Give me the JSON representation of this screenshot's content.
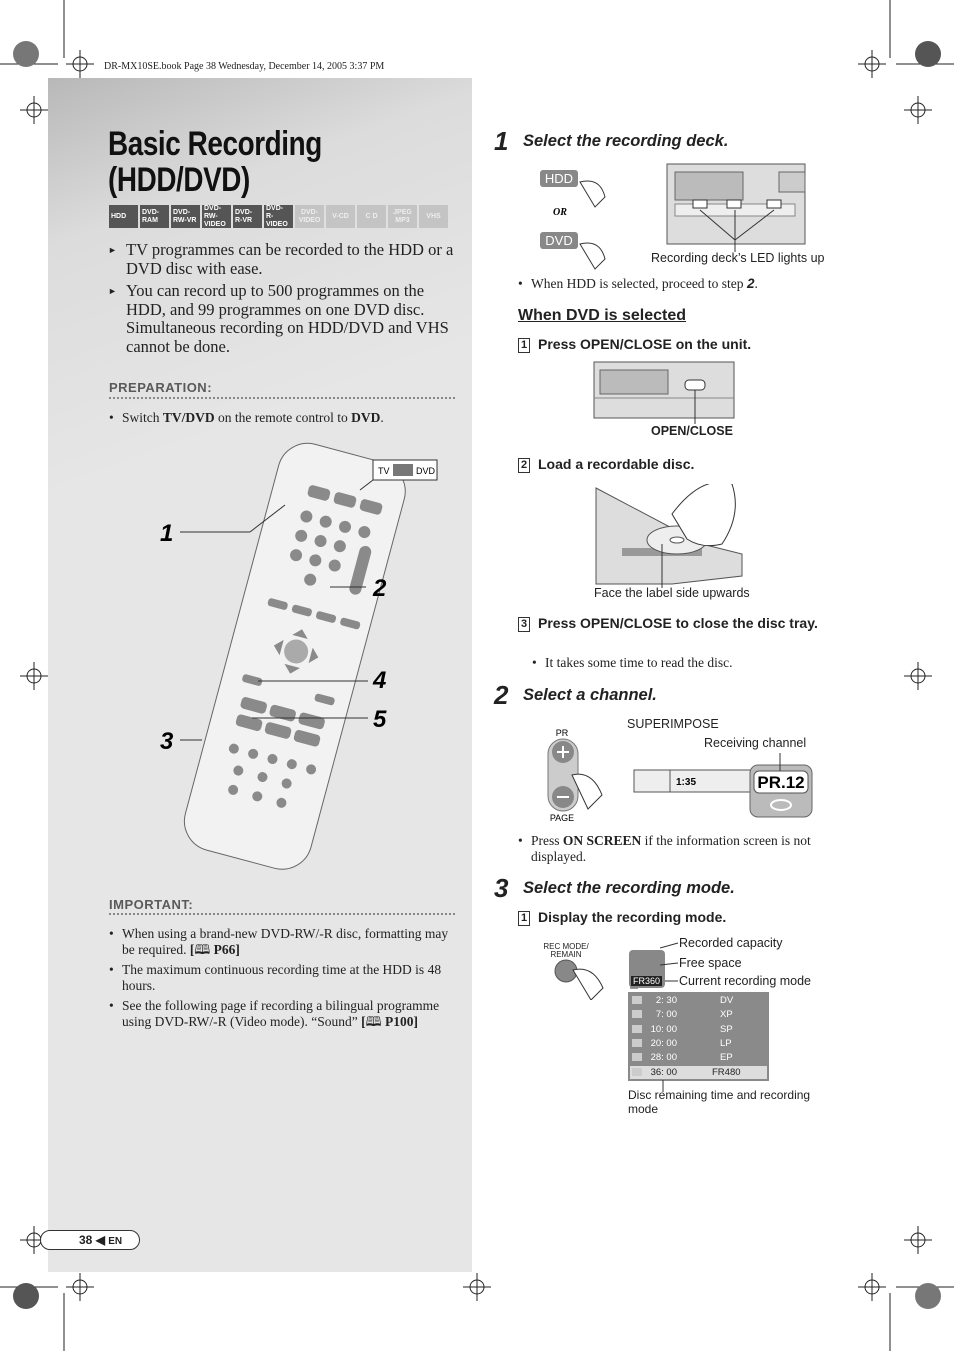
{
  "header": {
    "file_info": "DR-MX10SE.book  Page 38  Wednesday, December 14, 2005  3:37 PM"
  },
  "title_lines": [
    "Basic Recording",
    "(HDD/DVD)"
  ],
  "disc_badges": [
    {
      "lines": [
        "HDD"
      ],
      "active": true
    },
    {
      "lines": [
        "DVD-",
        "RAM"
      ],
      "active": true
    },
    {
      "lines": [
        "DVD-",
        "RW-VR"
      ],
      "active": true
    },
    {
      "lines": [
        "DVD-",
        "RW-VIDEO"
      ],
      "active": true
    },
    {
      "lines": [
        "DVD-",
        "R-VR"
      ],
      "active": true
    },
    {
      "lines": [
        "DVD-",
        "R-VIDEO"
      ],
      "active": true
    },
    {
      "lines": [
        "DVD-",
        "VIDEO"
      ],
      "active": false
    },
    {
      "lines": [
        "V-CD"
      ],
      "active": false
    },
    {
      "lines": [
        "C D"
      ],
      "active": false
    },
    {
      "lines": [
        "JPEG",
        "MP3"
      ],
      "active": false
    },
    {
      "lines": [
        "VHS"
      ],
      "active": false
    }
  ],
  "intro": [
    "TV programmes can be recorded to the HDD or a DVD disc with ease.",
    "You can record up to 500 programmes on the HDD, and 99 programmes on one DVD disc. Simultaneous recording on HDD/DVD and VHS cannot be done."
  ],
  "preparation": {
    "heading": "PREPARATION:",
    "item": [
      "Switch ",
      "TV/DVD",
      " on the remote control to ",
      "DVD",
      "."
    ]
  },
  "remote": {
    "switch_labels": [
      "TV",
      "DVD"
    ],
    "callouts": [
      "1",
      "2",
      "4",
      "5",
      "3"
    ]
  },
  "important": {
    "heading": "IMPORTANT:",
    "items": [
      {
        "text": "When using a brand-new DVD-RW/-R disc, formatting may be required. ",
        "ref": [
          "[",
          "P66]"
        ]
      },
      {
        "text": "The maximum continuous recording time at the HDD is 48 hours."
      },
      {
        "text": "See the following page if recording a bilingual programme using DVD-RW/-R (Video mode). “Sound” ",
        "ref": [
          "[",
          "P100]"
        ]
      }
    ]
  },
  "footer": {
    "page": "38",
    "lang": "EN"
  },
  "step1": {
    "number": "1",
    "title": "Select the recording deck.",
    "buttons": [
      "HDD",
      "DVD"
    ],
    "or": "OR",
    "led_caption": "Recording deck’s LED lights up",
    "note": [
      "When HDD is selected, proceed to step ",
      "2",
      "."
    ],
    "dvd_heading": "When DVD is selected",
    "substeps": [
      {
        "num": "1",
        "text": "Press OPEN/CLOSE on the unit.",
        "caption": "OPEN/CLOSE"
      },
      {
        "num": "2",
        "text": "Load a recordable disc.",
        "caption": "Face the label side upwards"
      },
      {
        "num": "3",
        "text": "Press OPEN/CLOSE to close the disc tray.",
        "note": "It takes some time to read the disc."
      }
    ]
  },
  "step2": {
    "number": "2",
    "title": "Select a channel.",
    "superimpose": "SUPERIMPOSE",
    "receiving": "Receiving channel",
    "pr_label": "PR",
    "page_label": "PAGE",
    "time": "1:35",
    "channel": "PR.12",
    "note": [
      "Press ",
      "ON SCREEN",
      " if the information screen is not displayed."
    ]
  },
  "step3": {
    "number": "3",
    "title": "Select the recording mode.",
    "substep": {
      "num": "1",
      "text": "Display the recording mode."
    },
    "button_label": [
      "REC MODE/",
      "REMAIN"
    ],
    "labels": [
      "Recorded capacity",
      "Free space",
      "Current recording mode"
    ],
    "indicator": "FR360",
    "table": [
      [
        "2: 30",
        "DV"
      ],
      [
        "7: 00",
        "XP"
      ],
      [
        "10: 00",
        "SP"
      ],
      [
        "20: 00",
        "LP"
      ],
      [
        "28: 00",
        "EP"
      ],
      [
        "36: 00",
        "FR480"
      ]
    ],
    "caption": "Disc remaining time and recording mode"
  }
}
